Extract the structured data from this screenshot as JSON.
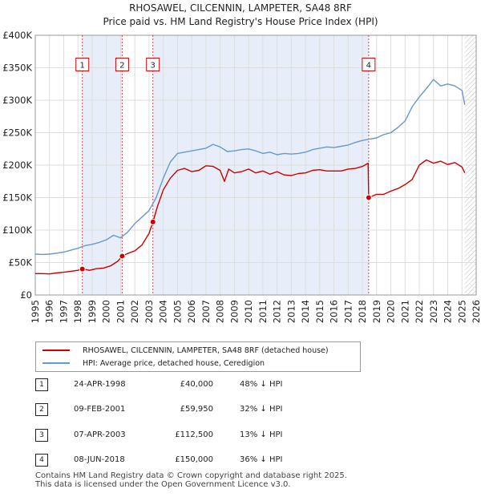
{
  "title": "RHOSAWEL, CILCENNIN, LAMPETER, SA48 8RF",
  "subtitle": "Price paid vs. HM Land Registry's House Price Index (HPI)",
  "colors": {
    "property": "#cc0000",
    "hpi": "#6699cc",
    "shade": "#e8eef9",
    "marker": "#cc0000"
  },
  "legend": {
    "property": "RHOSAWEL, CILCENNIN, LAMPETER, SA48 8RF (detached house)",
    "hpi": "HPI: Average price, detached house, Ceredigion"
  },
  "sales": [
    {
      "num": "1",
      "date": "24-APR-1998",
      "price": "£40,000",
      "hpi": "48% ↓ HPI"
    },
    {
      "num": "2",
      "date": "09-FEB-2001",
      "price": "£59,950",
      "hpi": "32% ↓ HPI"
    },
    {
      "num": "3",
      "date": "07-APR-2003",
      "price": "£112,500",
      "hpi": "13% ↓ HPI"
    },
    {
      "num": "4",
      "date": "08-JUN-2018",
      "price": "£150,000",
      "hpi": "36% ↓ HPI"
    }
  ],
  "footer": {
    "line1": "Contains HM Land Registry data © Crown copyright and database right 2025.",
    "line2": "This data is licensed under the Open Government Licence v3.0."
  },
  "chart_data": {
    "type": "line",
    "title": "RHOSAWEL, CILCENNIN, LAMPETER, SA48 8RF",
    "subtitle": "Price paid vs. HM Land Registry's House Price Index (HPI)",
    "xlabel": "",
    "ylabel": "",
    "xlim": [
      1995,
      2026
    ],
    "ylim": [
      0,
      400000
    ],
    "x_ticks": [
      1995,
      1996,
      1997,
      1998,
      1999,
      2000,
      2001,
      2002,
      2003,
      2004,
      2005,
      2006,
      2007,
      2008,
      2009,
      2010,
      2011,
      2012,
      2013,
      2014,
      2015,
      2016,
      2017,
      2018,
      2019,
      2020,
      2021,
      2022,
      2023,
      2024,
      2025,
      2026
    ],
    "y_ticks": [
      {
        "value": 0,
        "label": "£0"
      },
      {
        "value": 50000,
        "label": "£50K"
      },
      {
        "value": 100000,
        "label": "£100K"
      },
      {
        "value": 150000,
        "label": "£150K"
      },
      {
        "value": 200000,
        "label": "£200K"
      },
      {
        "value": 250000,
        "label": "£250K"
      },
      {
        "value": 300000,
        "label": "£300K"
      },
      {
        "value": 350000,
        "label": "£350K"
      },
      {
        "value": 400000,
        "label": "£400K"
      }
    ],
    "grid": true,
    "shaded_periods": [
      [
        1998.31,
        2001.11
      ],
      [
        2003.27,
        2018.44
      ]
    ],
    "data_end": 2025.2,
    "series": [
      {
        "name": "RHOSAWEL, CILCENNIN, LAMPETER, SA48 8RF (detached house)",
        "x": [
          1995.0,
          1995.5,
          1996.0,
          1996.5,
          1997.0,
          1997.5,
          1998.0,
          1998.31,
          1998.8,
          1999.3,
          1999.8,
          2000.3,
          2000.8,
          2001.11,
          2001.5,
          2002.0,
          2002.5,
          2003.0,
          2003.27,
          2003.6,
          2004.0,
          2004.5,
          2005.0,
          2005.5,
          2006.0,
          2006.5,
          2007.0,
          2007.5,
          2008.0,
          2008.3,
          2008.6,
          2009.0,
          2009.5,
          2010.0,
          2010.5,
          2011.0,
          2011.5,
          2012.0,
          2012.5,
          2013.0,
          2013.5,
          2014.0,
          2014.5,
          2015.0,
          2015.5,
          2016.0,
          2016.5,
          2017.0,
          2017.5,
          2018.0,
          2018.4,
          2018.44,
          2019.0,
          2019.5,
          2020.0,
          2020.5,
          2021.0,
          2021.5,
          2022.0,
          2022.5,
          2023.0,
          2023.5,
          2024.0,
          2024.5,
          2025.0,
          2025.2
        ],
        "values": [
          33000,
          33000,
          32500,
          34000,
          35000,
          36500,
          38000,
          40000,
          38000,
          40500,
          41500,
          45000,
          52000,
          59950,
          64000,
          68000,
          77000,
          95000,
          112500,
          137000,
          162000,
          180000,
          192000,
          195000,
          190000,
          192000,
          199000,
          198000,
          192000,
          175000,
          194000,
          188000,
          190000,
          194000,
          188000,
          191000,
          186000,
          190000,
          185000,
          184000,
          187000,
          188000,
          192000,
          193000,
          191000,
          191000,
          191000,
          194000,
          195000,
          198000,
          203000,
          150000,
          155000,
          155000,
          160000,
          164000,
          170000,
          178000,
          200000,
          208000,
          203000,
          206000,
          201000,
          204000,
          197000,
          188000
        ]
      },
      {
        "name": "HPI: Average price, detached house, Ceredigion",
        "x": [
          1995.0,
          1995.5,
          1996.0,
          1996.5,
          1997.0,
          1997.5,
          1998.0,
          1998.5,
          1999.0,
          1999.5,
          2000.0,
          2000.5,
          2001.0,
          2001.5,
          2002.0,
          2002.5,
          2003.0,
          2003.5,
          2004.0,
          2004.5,
          2005.0,
          2005.5,
          2006.0,
          2006.5,
          2007.0,
          2007.5,
          2008.0,
          2008.5,
          2009.0,
          2009.5,
          2010.0,
          2010.5,
          2011.0,
          2011.5,
          2012.0,
          2012.5,
          2013.0,
          2013.5,
          2014.0,
          2014.5,
          2015.0,
          2015.5,
          2016.0,
          2016.5,
          2017.0,
          2017.5,
          2018.0,
          2018.5,
          2019.0,
          2019.5,
          2020.0,
          2020.5,
          2021.0,
          2021.5,
          2022.0,
          2022.5,
          2023.0,
          2023.5,
          2024.0,
          2024.5,
          2025.0,
          2025.2
        ],
        "values": [
          63000,
          62500,
          63000,
          64500,
          66000,
          69000,
          72000,
          76000,
          78000,
          81000,
          85000,
          92000,
          88000,
          97000,
          110000,
          120000,
          130000,
          150000,
          180000,
          205000,
          218000,
          220000,
          222000,
          224000,
          226000,
          232000,
          228000,
          221000,
          222000,
          224000,
          225000,
          222000,
          218000,
          220000,
          216000,
          218000,
          217000,
          218000,
          220000,
          224000,
          226000,
          228000,
          227000,
          229000,
          231000,
          235000,
          238000,
          240000,
          242000,
          247000,
          250000,
          258000,
          268000,
          290000,
          305000,
          318000,
          332000,
          322000,
          325000,
          322000,
          315000,
          293000
        ]
      }
    ],
    "sale_markers": [
      {
        "num": "1",
        "x": 1998.31,
        "y": 40000
      },
      {
        "num": "2",
        "x": 2001.11,
        "y": 59950
      },
      {
        "num": "3",
        "x": 2003.27,
        "y": 112500
      },
      {
        "num": "4",
        "x": 2018.44,
        "y": 150000
      }
    ],
    "marker_label_value": 355000
  }
}
